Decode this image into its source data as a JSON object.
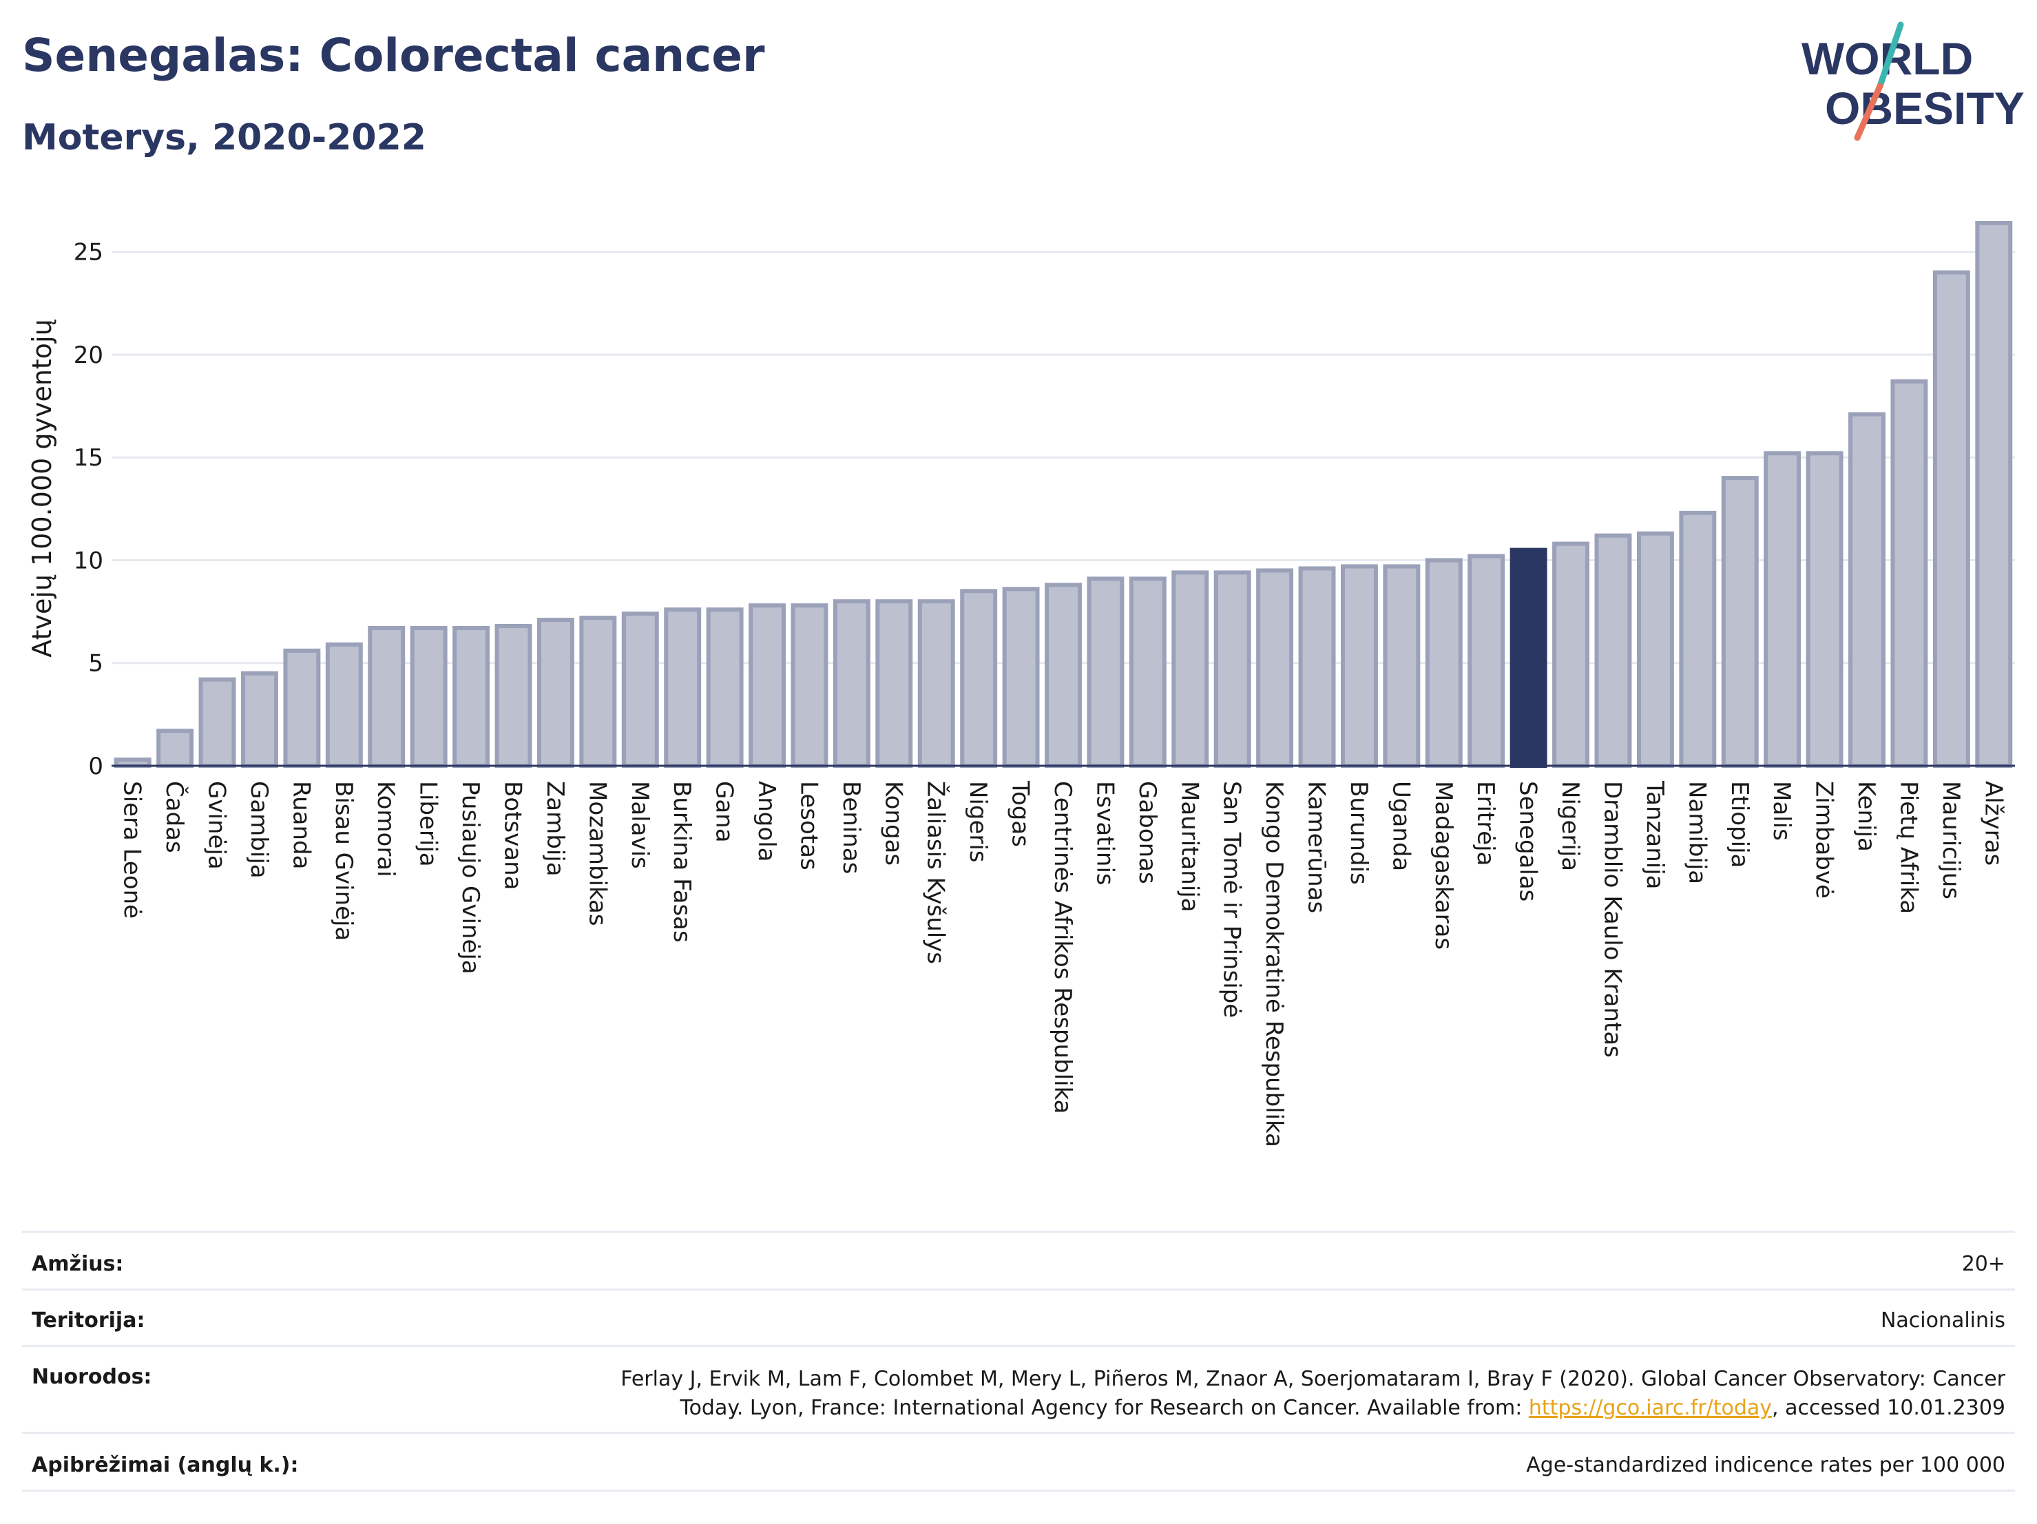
{
  "header": {
    "title": "Senegalas: Colorectal cancer",
    "subtitle": "Moterys, 2020-2022",
    "logo_line1": "WORLD",
    "logo_line2": "OBESITY"
  },
  "colors": {
    "title": "#2b3763",
    "bar": "#bcc0cf",
    "bar_stroke": "#9aa1b9",
    "highlight": "#2b3763",
    "grid": "#e6e8ef",
    "logo_teal": "#3ab5b0",
    "logo_coral": "#e8735a"
  },
  "chart_data": {
    "type": "bar",
    "ylabel": "Atvejų 100.000 gyventojų",
    "xlabel": "",
    "ylim": [
      0,
      27
    ],
    "yticks": [
      0,
      5,
      10,
      15,
      20,
      25
    ],
    "grid": true,
    "highlight": "Senegalas",
    "categories": [
      "Siera Leonė",
      "Čadas",
      "Gvinėja",
      "Gambija",
      "Ruanda",
      "Bisau Gvinėja",
      "Komorai",
      "Liberija",
      "Pusiaujo Gvinėja",
      "Botsvana",
      "Zambija",
      "Mozambikas",
      "Malavis",
      "Burkina Fasas",
      "Gana",
      "Angola",
      "Lesotas",
      "Beninas",
      "Kongas",
      "Žaliasis Kyšulys",
      "Nigeris",
      "Togas",
      "Centrinės Afrikos Respublika",
      "Esvatinis",
      "Gabonas",
      "Mauritanija",
      "San Tomė ir Prinsipė",
      "Kongo Demokratinė Respublika",
      "Kamerūnas",
      "Burundis",
      "Uganda",
      "Madagaskaras",
      "Eritrėja",
      "Senegalas",
      "Nigerija",
      "Dramblio Kaulo Krantas",
      "Tanzanija",
      "Namibija",
      "Etiopija",
      "Malis",
      "Zimbabvė",
      "Kenija",
      "Pietų Afrika",
      "Mauricijus",
      "Alžyras"
    ],
    "values": [
      0.3,
      1.7,
      4.2,
      4.5,
      5.6,
      5.9,
      6.7,
      6.7,
      6.7,
      6.8,
      7.1,
      7.2,
      7.4,
      7.6,
      7.6,
      7.8,
      7.8,
      8.0,
      8.0,
      8.0,
      8.5,
      8.6,
      8.8,
      9.1,
      9.1,
      9.4,
      9.4,
      9.5,
      9.6,
      9.7,
      9.7,
      10.0,
      10.2,
      10.5,
      10.8,
      11.2,
      11.3,
      12.3,
      14.0,
      15.2,
      15.2,
      17.1,
      18.7,
      24.0,
      26.4
    ]
  },
  "info": {
    "rows": [
      {
        "label": "Amžius:",
        "value": "20+"
      },
      {
        "label": "Teritorija:",
        "value": "Nacionalinis"
      },
      {
        "label": "Nuorodos:",
        "value_line1": "Ferlay J, Ervik M, Lam F, Colombet M, Mery L, Piñeros M, Znaor A, Soerjomataram I, Bray F (2020). Global Cancer Observatory: Cancer",
        "value_line2_pre": "Today. Lyon, France: International Agency for Research on Cancer. Available from: ",
        "link": "https://gco.iarc.fr/today",
        "value_line2_post": ", accessed 10.01.2309"
      },
      {
        "label": "Apibrėžimai (anglų k.):",
        "value": "Age-standardized indicence rates per 100 000"
      }
    ]
  }
}
